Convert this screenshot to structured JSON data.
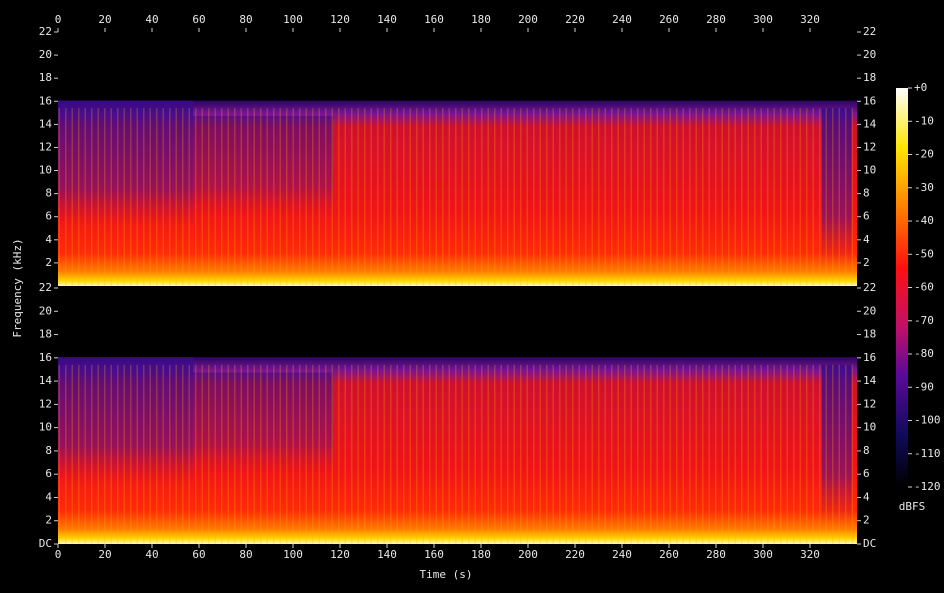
{
  "chart_data": {
    "type": "spectrogram",
    "xlabel": "Time (s)",
    "ylabel": "Frequency (kHz)",
    "xlim": [
      0,
      340
    ],
    "xticks": [
      0,
      20,
      40,
      60,
      80,
      100,
      120,
      140,
      160,
      180,
      200,
      220,
      240,
      260,
      280,
      300,
      320
    ],
    "channels": [
      {
        "ylim": [
          0,
          22
        ],
        "yticks": [
          2,
          4,
          6,
          8,
          10,
          12,
          14,
          16,
          18,
          20,
          22
        ]
      },
      {
        "ylim": [
          0,
          22
        ],
        "yticks": [
          {
            "value": 0,
            "label": "DC"
          },
          2,
          4,
          6,
          8,
          10,
          12,
          14,
          16,
          18,
          20,
          22
        ]
      }
    ],
    "colorbar": {
      "label": "dBFS",
      "lim": [
        -120,
        0
      ],
      "ticks": [
        {
          "value": 0,
          "label": "+0"
        },
        -10,
        -20,
        -30,
        -40,
        -50,
        -60,
        -70,
        -80,
        -90,
        -100,
        -110,
        -120
      ]
    }
  }
}
